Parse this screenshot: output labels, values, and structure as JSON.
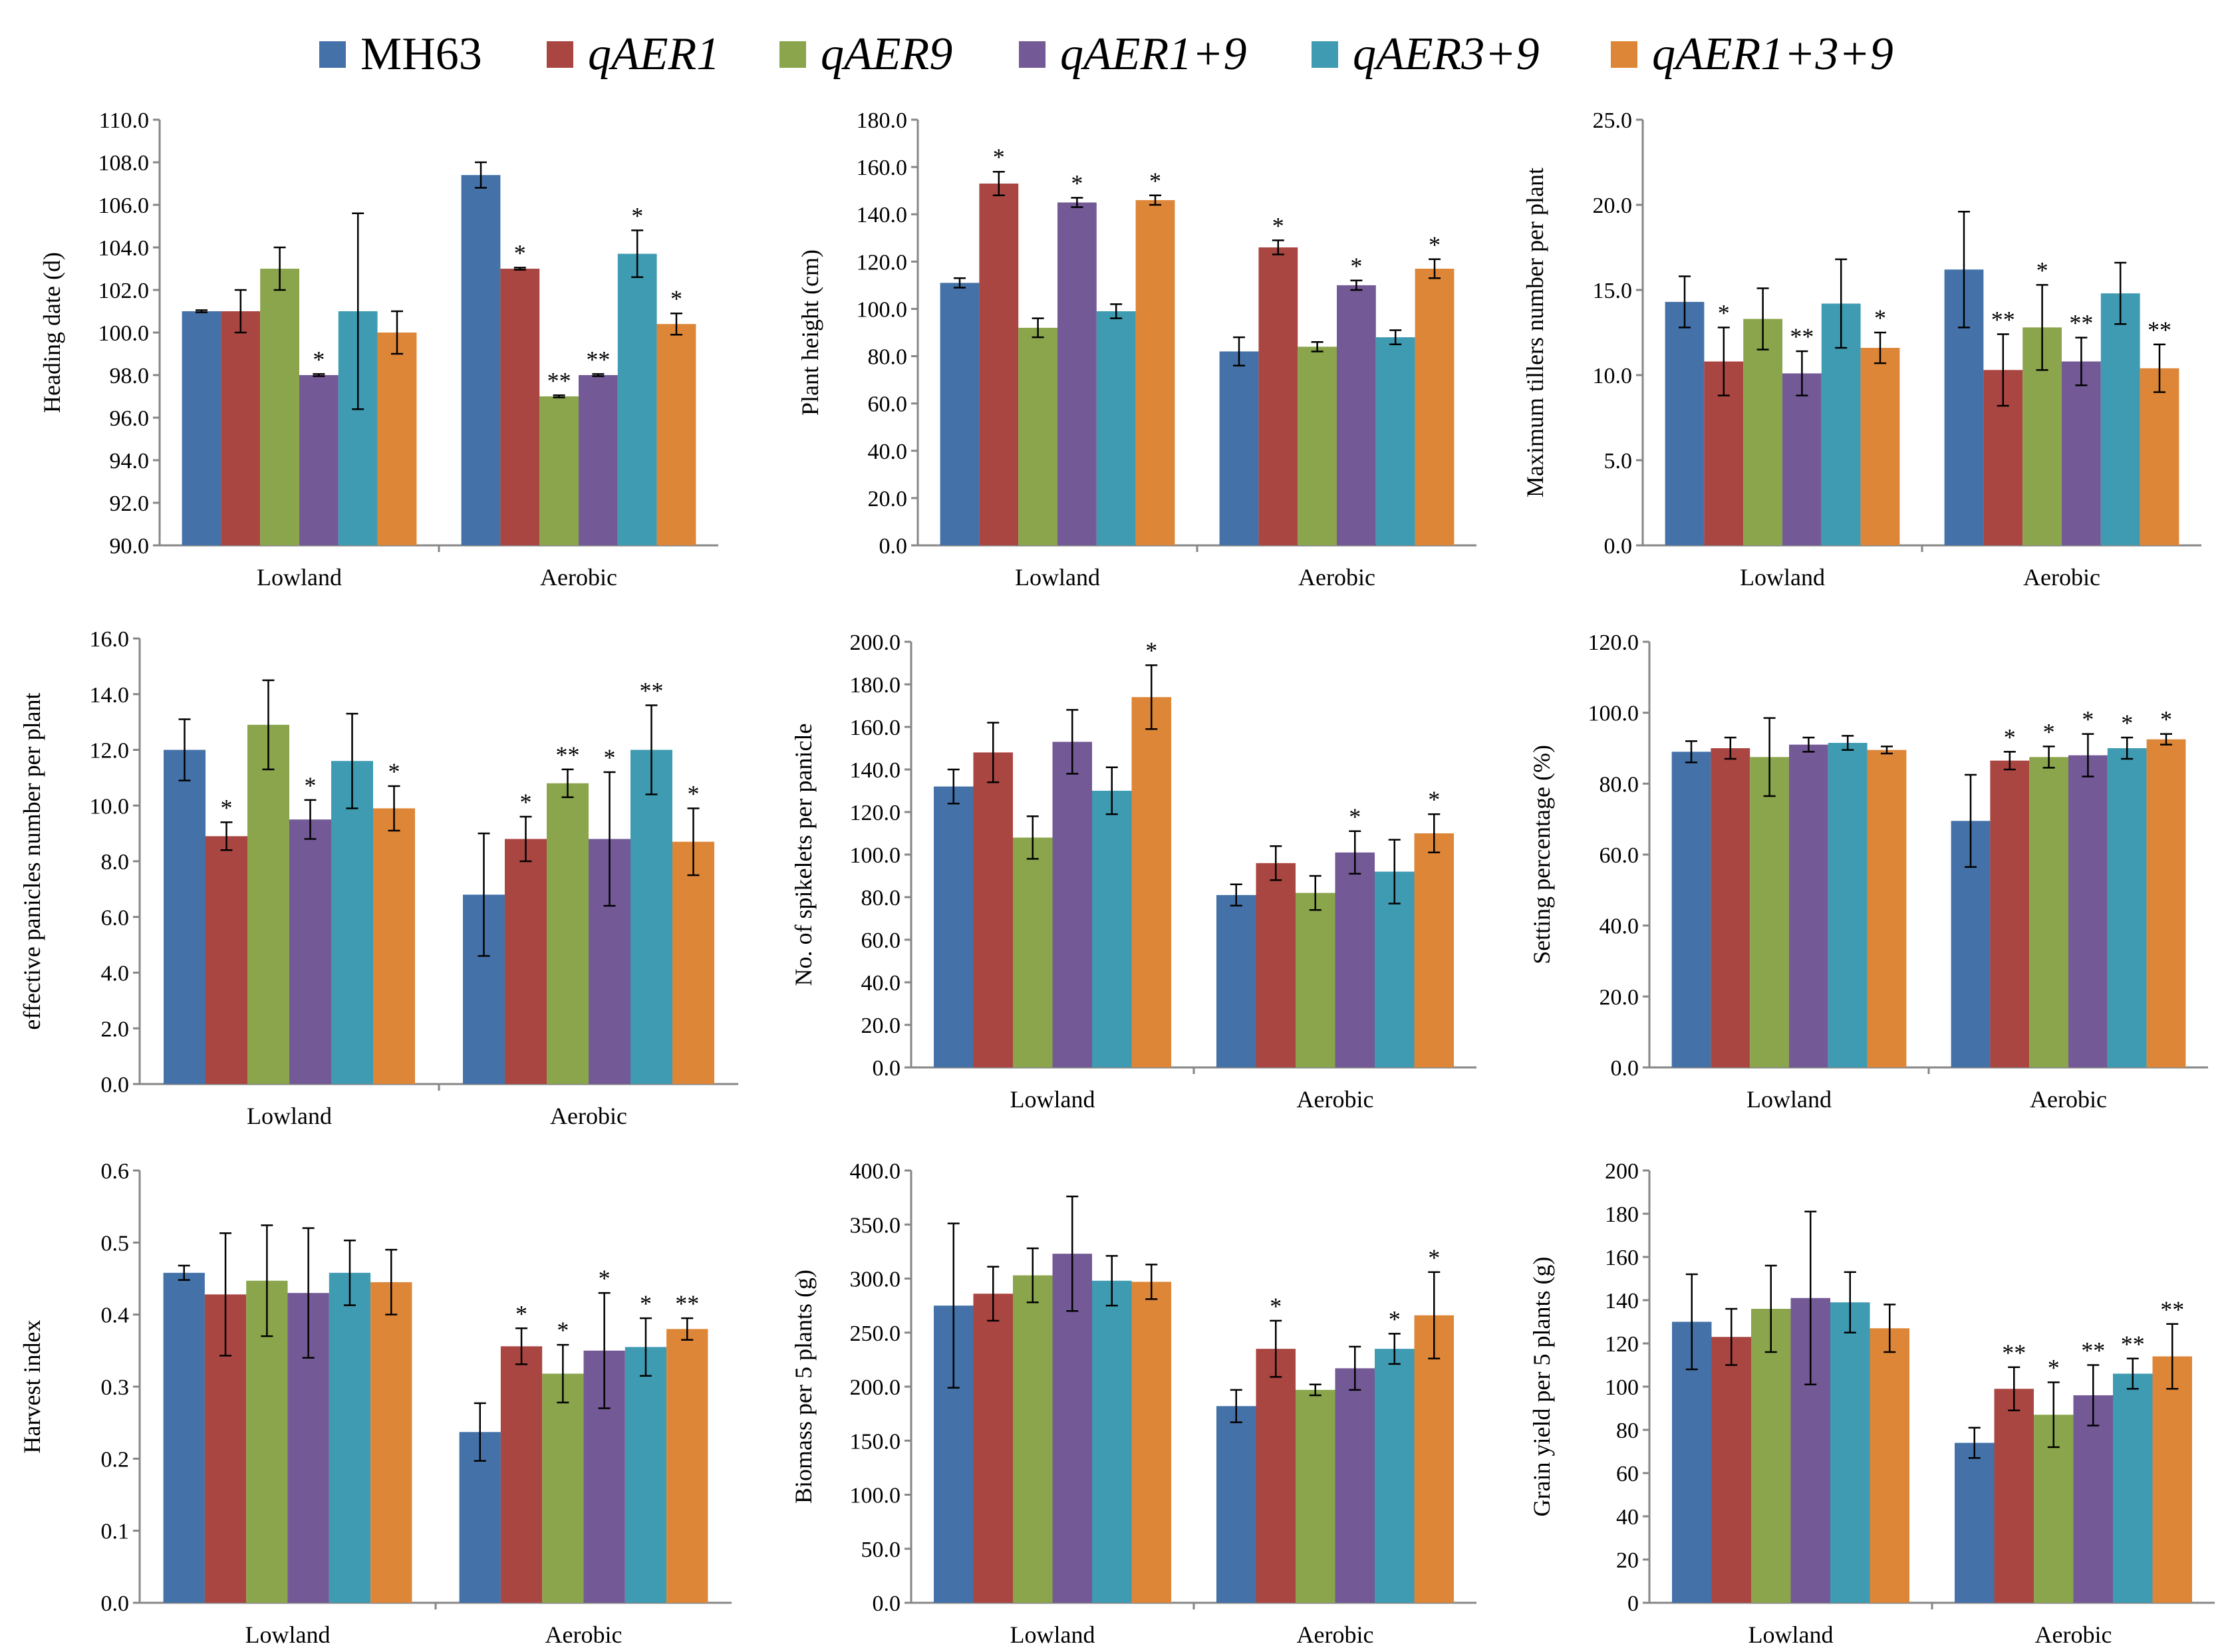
{
  "legend": [
    {
      "label": "MH63",
      "color": "#4472A8",
      "italic": false
    },
    {
      "label": "qAER1",
      "color": "#AA4642",
      "italic": true
    },
    {
      "label": "qAER9",
      "color": "#8AA54B",
      "italic": true
    },
    {
      "label": "qAER1+9",
      "color": "#735A96",
      "italic": true
    },
    {
      "label": "qAER3+9",
      "color": "#3F9BB2",
      "italic": true
    },
    {
      "label": "qAER1+3+9",
      "color": "#DD8638",
      "italic": true
    }
  ],
  "chart_data": [
    {
      "type": "bar",
      "name": "heading-date",
      "ylabel": "Heading date (d)",
      "ylim": [
        90,
        110
      ],
      "yticks": [
        90,
        92,
        94,
        96,
        98,
        100,
        102,
        104,
        106,
        108,
        110
      ],
      "decimals": 1,
      "categories": [
        "Lowland",
        "Aerobic"
      ],
      "series": [
        {
          "name": "MH63",
          "values": [
            101.0,
            107.4
          ],
          "errors": [
            0.05,
            0.6
          ],
          "sig": [
            "",
            ""
          ]
        },
        {
          "name": "qAER1",
          "values": [
            101.0,
            103.0
          ],
          "errors": [
            1.0,
            0.05
          ],
          "sig": [
            "",
            "*"
          ]
        },
        {
          "name": "qAER9",
          "values": [
            103.0,
            97.0
          ],
          "errors": [
            1.0,
            0.05
          ],
          "sig": [
            "",
            "**"
          ]
        },
        {
          "name": "qAER1+9",
          "values": [
            98.0,
            98.0
          ],
          "errors": [
            0.05,
            0.05
          ],
          "sig": [
            "*",
            "**"
          ]
        },
        {
          "name": "qAER3+9",
          "values": [
            101.0,
            103.7
          ],
          "errors": [
            4.6,
            1.1
          ],
          "sig": [
            "",
            "*"
          ]
        },
        {
          "name": "qAER1+3+9",
          "values": [
            100.0,
            100.4
          ],
          "errors": [
            1.0,
            0.5
          ],
          "sig": [
            "",
            "*"
          ]
        }
      ]
    },
    {
      "type": "bar",
      "name": "plant-height",
      "ylabel": "Plant height (cm)",
      "ylim": [
        0,
        180
      ],
      "yticks": [
        0,
        20,
        40,
        60,
        80,
        100,
        120,
        140,
        160,
        180
      ],
      "decimals": 1,
      "categories": [
        "Lowland",
        "Aerobic"
      ],
      "series": [
        {
          "name": "MH63",
          "values": [
            111,
            82
          ],
          "errors": [
            2,
            6
          ],
          "sig": [
            "",
            ""
          ]
        },
        {
          "name": "qAER1",
          "values": [
            153,
            126
          ],
          "errors": [
            5,
            3
          ],
          "sig": [
            "*",
            "*"
          ]
        },
        {
          "name": "qAER9",
          "values": [
            92,
            84
          ],
          "errors": [
            4,
            2
          ],
          "sig": [
            "",
            ""
          ]
        },
        {
          "name": "qAER1+9",
          "values": [
            145,
            110
          ],
          "errors": [
            2,
            2
          ],
          "sig": [
            "*",
            "*"
          ]
        },
        {
          "name": "qAER3+9",
          "values": [
            99,
            88
          ],
          "errors": [
            3,
            3
          ],
          "sig": [
            "",
            ""
          ]
        },
        {
          "name": "qAER1+3+9",
          "values": [
            146,
            117
          ],
          "errors": [
            2,
            4
          ],
          "sig": [
            "*",
            "*"
          ]
        }
      ]
    },
    {
      "type": "bar",
      "name": "maximum-tillers",
      "ylabel": "Maximum tillers number per plant",
      "ylim": [
        0,
        25
      ],
      "yticks": [
        0,
        5,
        10,
        15,
        20,
        25
      ],
      "decimals": 1,
      "categories": [
        "Lowland",
        "Aerobic"
      ],
      "series": [
        {
          "name": "MH63",
          "values": [
            14.3,
            16.2
          ],
          "errors": [
            1.5,
            3.4
          ],
          "sig": [
            "",
            ""
          ]
        },
        {
          "name": "qAER1",
          "values": [
            10.8,
            10.3
          ],
          "errors": [
            2.0,
            2.1
          ],
          "sig": [
            "*",
            "**"
          ]
        },
        {
          "name": "qAER9",
          "values": [
            13.3,
            12.8
          ],
          "errors": [
            1.8,
            2.5
          ],
          "sig": [
            "",
            "*"
          ]
        },
        {
          "name": "qAER1+9",
          "values": [
            10.1,
            10.8
          ],
          "errors": [
            1.3,
            1.4
          ],
          "sig": [
            "**",
            "**"
          ]
        },
        {
          "name": "qAER3+9",
          "values": [
            14.2,
            14.8
          ],
          "errors": [
            2.6,
            1.8
          ],
          "sig": [
            "",
            ""
          ]
        },
        {
          "name": "qAER1+3+9",
          "values": [
            11.6,
            10.4
          ],
          "errors": [
            0.9,
            1.4
          ],
          "sig": [
            "*",
            "**"
          ]
        }
      ]
    },
    {
      "type": "bar",
      "name": "effective-panicles",
      "ylabel": "effective panicles number per plant",
      "ylim": [
        0,
        16
      ],
      "yticks": [
        0,
        2,
        4,
        6,
        8,
        10,
        12,
        14,
        16
      ],
      "decimals": 1,
      "categories": [
        "Lowland",
        "Aerobic"
      ],
      "series": [
        {
          "name": "MH63",
          "values": [
            12.0,
            6.8
          ],
          "errors": [
            1.1,
            2.2
          ],
          "sig": [
            "",
            ""
          ]
        },
        {
          "name": "qAER1",
          "values": [
            8.9,
            8.8
          ],
          "errors": [
            0.5,
            0.8
          ],
          "sig": [
            "*",
            "*"
          ]
        },
        {
          "name": "qAER9",
          "values": [
            12.9,
            10.8
          ],
          "errors": [
            1.6,
            0.5
          ],
          "sig": [
            "",
            "**"
          ]
        },
        {
          "name": "qAER1+9",
          "values": [
            9.5,
            8.8
          ],
          "errors": [
            0.7,
            2.4
          ],
          "sig": [
            "*",
            "*"
          ]
        },
        {
          "name": "qAER3+9",
          "values": [
            11.6,
            12.0
          ],
          "errors": [
            1.7,
            1.6
          ],
          "sig": [
            "",
            "**"
          ]
        },
        {
          "name": "qAER1+3+9",
          "values": [
            9.9,
            8.7
          ],
          "errors": [
            0.8,
            1.2
          ],
          "sig": [
            "*",
            "*"
          ]
        }
      ]
    },
    {
      "type": "bar",
      "name": "spikelets-per-panicle",
      "ylabel": "No. of spikelets  per panicle",
      "ylim": [
        0,
        200
      ],
      "yticks": [
        0,
        20,
        40,
        60,
        80,
        100,
        120,
        140,
        160,
        180,
        200
      ],
      "decimals": 1,
      "categories": [
        "Lowland",
        "Aerobic"
      ],
      "series": [
        {
          "name": "MH63",
          "values": [
            132,
            81
          ],
          "errors": [
            8,
            5
          ],
          "sig": [
            "",
            ""
          ]
        },
        {
          "name": "qAER1",
          "values": [
            148,
            96
          ],
          "errors": [
            14,
            8
          ],
          "sig": [
            "",
            ""
          ]
        },
        {
          "name": "qAER9",
          "values": [
            108,
            82
          ],
          "errors": [
            10,
            8
          ],
          "sig": [
            "",
            ""
          ]
        },
        {
          "name": "qAER1+9",
          "values": [
            153,
            101
          ],
          "errors": [
            15,
            10
          ],
          "sig": [
            "",
            "*"
          ]
        },
        {
          "name": "qAER3+9",
          "values": [
            130,
            92
          ],
          "errors": [
            11,
            15
          ],
          "sig": [
            "",
            ""
          ]
        },
        {
          "name": "qAER1+3+9",
          "values": [
            174,
            110
          ],
          "errors": [
            15,
            9
          ],
          "sig": [
            "*",
            "*"
          ]
        }
      ]
    },
    {
      "type": "bar",
      "name": "setting-percentage",
      "ylabel": "Setting percentage (%)",
      "ylim": [
        0,
        120
      ],
      "yticks": [
        0,
        20,
        40,
        60,
        80,
        100,
        120
      ],
      "decimals": 1,
      "categories": [
        "Lowland",
        "Aerobic"
      ],
      "series": [
        {
          "name": "MH63",
          "values": [
            89,
            69.5
          ],
          "errors": [
            3,
            13
          ],
          "sig": [
            "",
            ""
          ]
        },
        {
          "name": "qAER1",
          "values": [
            90,
            86.5
          ],
          "errors": [
            3,
            2.5
          ],
          "sig": [
            "",
            "*"
          ]
        },
        {
          "name": "qAER9",
          "values": [
            87.5,
            87.5
          ],
          "errors": [
            11,
            3
          ],
          "sig": [
            "",
            "*"
          ]
        },
        {
          "name": "qAER1+9",
          "values": [
            91,
            88
          ],
          "errors": [
            2,
            6
          ],
          "sig": [
            "",
            "*"
          ]
        },
        {
          "name": "qAER3+9",
          "values": [
            91.5,
            90
          ],
          "errors": [
            2,
            3
          ],
          "sig": [
            "",
            "*"
          ]
        },
        {
          "name": "qAER1+3+9",
          "values": [
            89.5,
            92.5
          ],
          "errors": [
            1,
            1.5
          ],
          "sig": [
            "",
            "*"
          ]
        }
      ]
    },
    {
      "type": "bar",
      "name": "harvest-index",
      "ylabel": "Harvest index",
      "ylim": [
        0,
        0.6
      ],
      "yticks": [
        0,
        0.1,
        0.2,
        0.3,
        0.4,
        0.5,
        0.6
      ],
      "decimals": 1,
      "categories": [
        "Lowland",
        "Aerobic"
      ],
      "series": [
        {
          "name": "MH63",
          "values": [
            0.458,
            0.237
          ],
          "errors": [
            0.01,
            0.04
          ],
          "sig": [
            "",
            ""
          ]
        },
        {
          "name": "qAER1",
          "values": [
            0.428,
            0.356
          ],
          "errors": [
            0.085,
            0.025
          ],
          "sig": [
            "",
            "*"
          ]
        },
        {
          "name": "qAER9",
          "values": [
            0.447,
            0.318
          ],
          "errors": [
            0.077,
            0.04
          ],
          "sig": [
            "",
            "*"
          ]
        },
        {
          "name": "qAER1+9",
          "values": [
            0.43,
            0.35
          ],
          "errors": [
            0.09,
            0.08
          ],
          "sig": [
            "",
            "*"
          ]
        },
        {
          "name": "qAER3+9",
          "values": [
            0.458,
            0.355
          ],
          "errors": [
            0.045,
            0.04
          ],
          "sig": [
            "",
            "*"
          ]
        },
        {
          "name": "qAER1+3+9",
          "values": [
            0.445,
            0.38
          ],
          "errors": [
            0.045,
            0.015
          ],
          "sig": [
            "",
            "**"
          ]
        }
      ]
    },
    {
      "type": "bar",
      "name": "biomass",
      "ylabel": "Biomass per 5 plants (g)",
      "ylim": [
        0,
        400
      ],
      "yticks": [
        0,
        50,
        100,
        150,
        200,
        250,
        300,
        350,
        400
      ],
      "decimals": 1,
      "categories": [
        "Lowland",
        "Aerobic"
      ],
      "series": [
        {
          "name": "MH63",
          "values": [
            275,
            182
          ],
          "errors": [
            76,
            15
          ],
          "sig": [
            "",
            ""
          ]
        },
        {
          "name": "qAER1",
          "values": [
            286,
            235
          ],
          "errors": [
            25,
            26
          ],
          "sig": [
            "",
            "*"
          ]
        },
        {
          "name": "qAER9",
          "values": [
            303,
            197
          ],
          "errors": [
            25,
            5
          ],
          "sig": [
            "",
            ""
          ]
        },
        {
          "name": "qAER1+9",
          "values": [
            323,
            217
          ],
          "errors": [
            53,
            20
          ],
          "sig": [
            "",
            ""
          ]
        },
        {
          "name": "qAER3+9",
          "values": [
            298,
            235
          ],
          "errors": [
            23,
            14
          ],
          "sig": [
            "",
            "*"
          ]
        },
        {
          "name": "qAER1+3+9",
          "values": [
            297,
            266
          ],
          "errors": [
            16,
            40
          ],
          "sig": [
            "",
            "*"
          ]
        }
      ]
    },
    {
      "type": "bar",
      "name": "grain-yield",
      "ylabel": "Grain yield per 5 plants (g)",
      "ylim": [
        0,
        200
      ],
      "yticks": [
        0,
        20,
        40,
        60,
        80,
        100,
        120,
        140,
        160,
        180,
        200
      ],
      "decimals": 0,
      "categories": [
        "Lowland",
        "Aerobic"
      ],
      "series": [
        {
          "name": "MH63",
          "values": [
            130,
            74
          ],
          "errors": [
            22,
            7
          ],
          "sig": [
            "",
            ""
          ]
        },
        {
          "name": "qAER1",
          "values": [
            123,
            99
          ],
          "errors": [
            13,
            10
          ],
          "sig": [
            "",
            "**"
          ]
        },
        {
          "name": "qAER9",
          "values": [
            136,
            87
          ],
          "errors": [
            20,
            15
          ],
          "sig": [
            "",
            "*"
          ]
        },
        {
          "name": "qAER1+9",
          "values": [
            141,
            96
          ],
          "errors": [
            40,
            14
          ],
          "sig": [
            "",
            "**"
          ]
        },
        {
          "name": "qAER3+9",
          "values": [
            139,
            106
          ],
          "errors": [
            14,
            7
          ],
          "sig": [
            "",
            "**"
          ]
        },
        {
          "name": "qAER1+3+9",
          "values": [
            127,
            114
          ],
          "errors": [
            11,
            15
          ],
          "sig": [
            "",
            "**"
          ]
        }
      ]
    }
  ]
}
